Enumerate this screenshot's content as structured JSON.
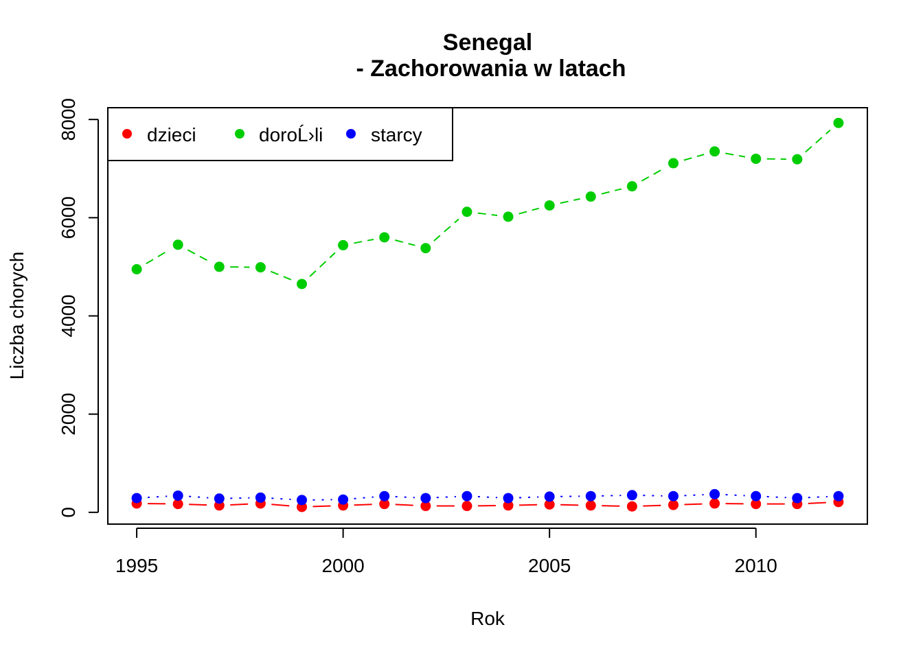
{
  "chart_data": {
    "type": "line",
    "title_line1": "Senegal",
    "title_line2": "- Zachorowania w latach",
    "xlabel": "Rok",
    "ylabel": "Liczba chorych",
    "xlim": [
      1994.3,
      2012.7
    ],
    "ylim": [
      -240,
      8240
    ],
    "x_ticks": [
      1995,
      2000,
      2005,
      2010
    ],
    "y_ticks": [
      0,
      2000,
      4000,
      6000,
      8000
    ],
    "x": [
      1995,
      1996,
      1997,
      1998,
      1999,
      2000,
      2001,
      2002,
      2003,
      2004,
      2005,
      2006,
      2007,
      2008,
      2009,
      2010,
      2011,
      2012
    ],
    "series": [
      {
        "name": "dzieci",
        "color": "#ff0000",
        "line_style": "long-dash",
        "values": [
          180,
          170,
          140,
          180,
          110,
          140,
          170,
          130,
          130,
          140,
          160,
          140,
          120,
          150,
          180,
          170,
          170,
          210
        ]
      },
      {
        "name": "doroĹ›li",
        "color": "#00cd00",
        "line_style": "dashed",
        "values": [
          4950,
          5450,
          5000,
          4990,
          4650,
          5440,
          5600,
          5380,
          6120,
          6020,
          6250,
          6430,
          6640,
          7110,
          7350,
          7200,
          7190,
          7930
        ]
      },
      {
        "name": "starcy",
        "color": "#0000ff",
        "line_style": "dotted",
        "values": [
          290,
          340,
          280,
          300,
          250,
          260,
          330,
          290,
          330,
          290,
          320,
          330,
          350,
          330,
          370,
          330,
          290,
          330
        ]
      }
    ],
    "legend_position": "top-left",
    "grid": false
  }
}
